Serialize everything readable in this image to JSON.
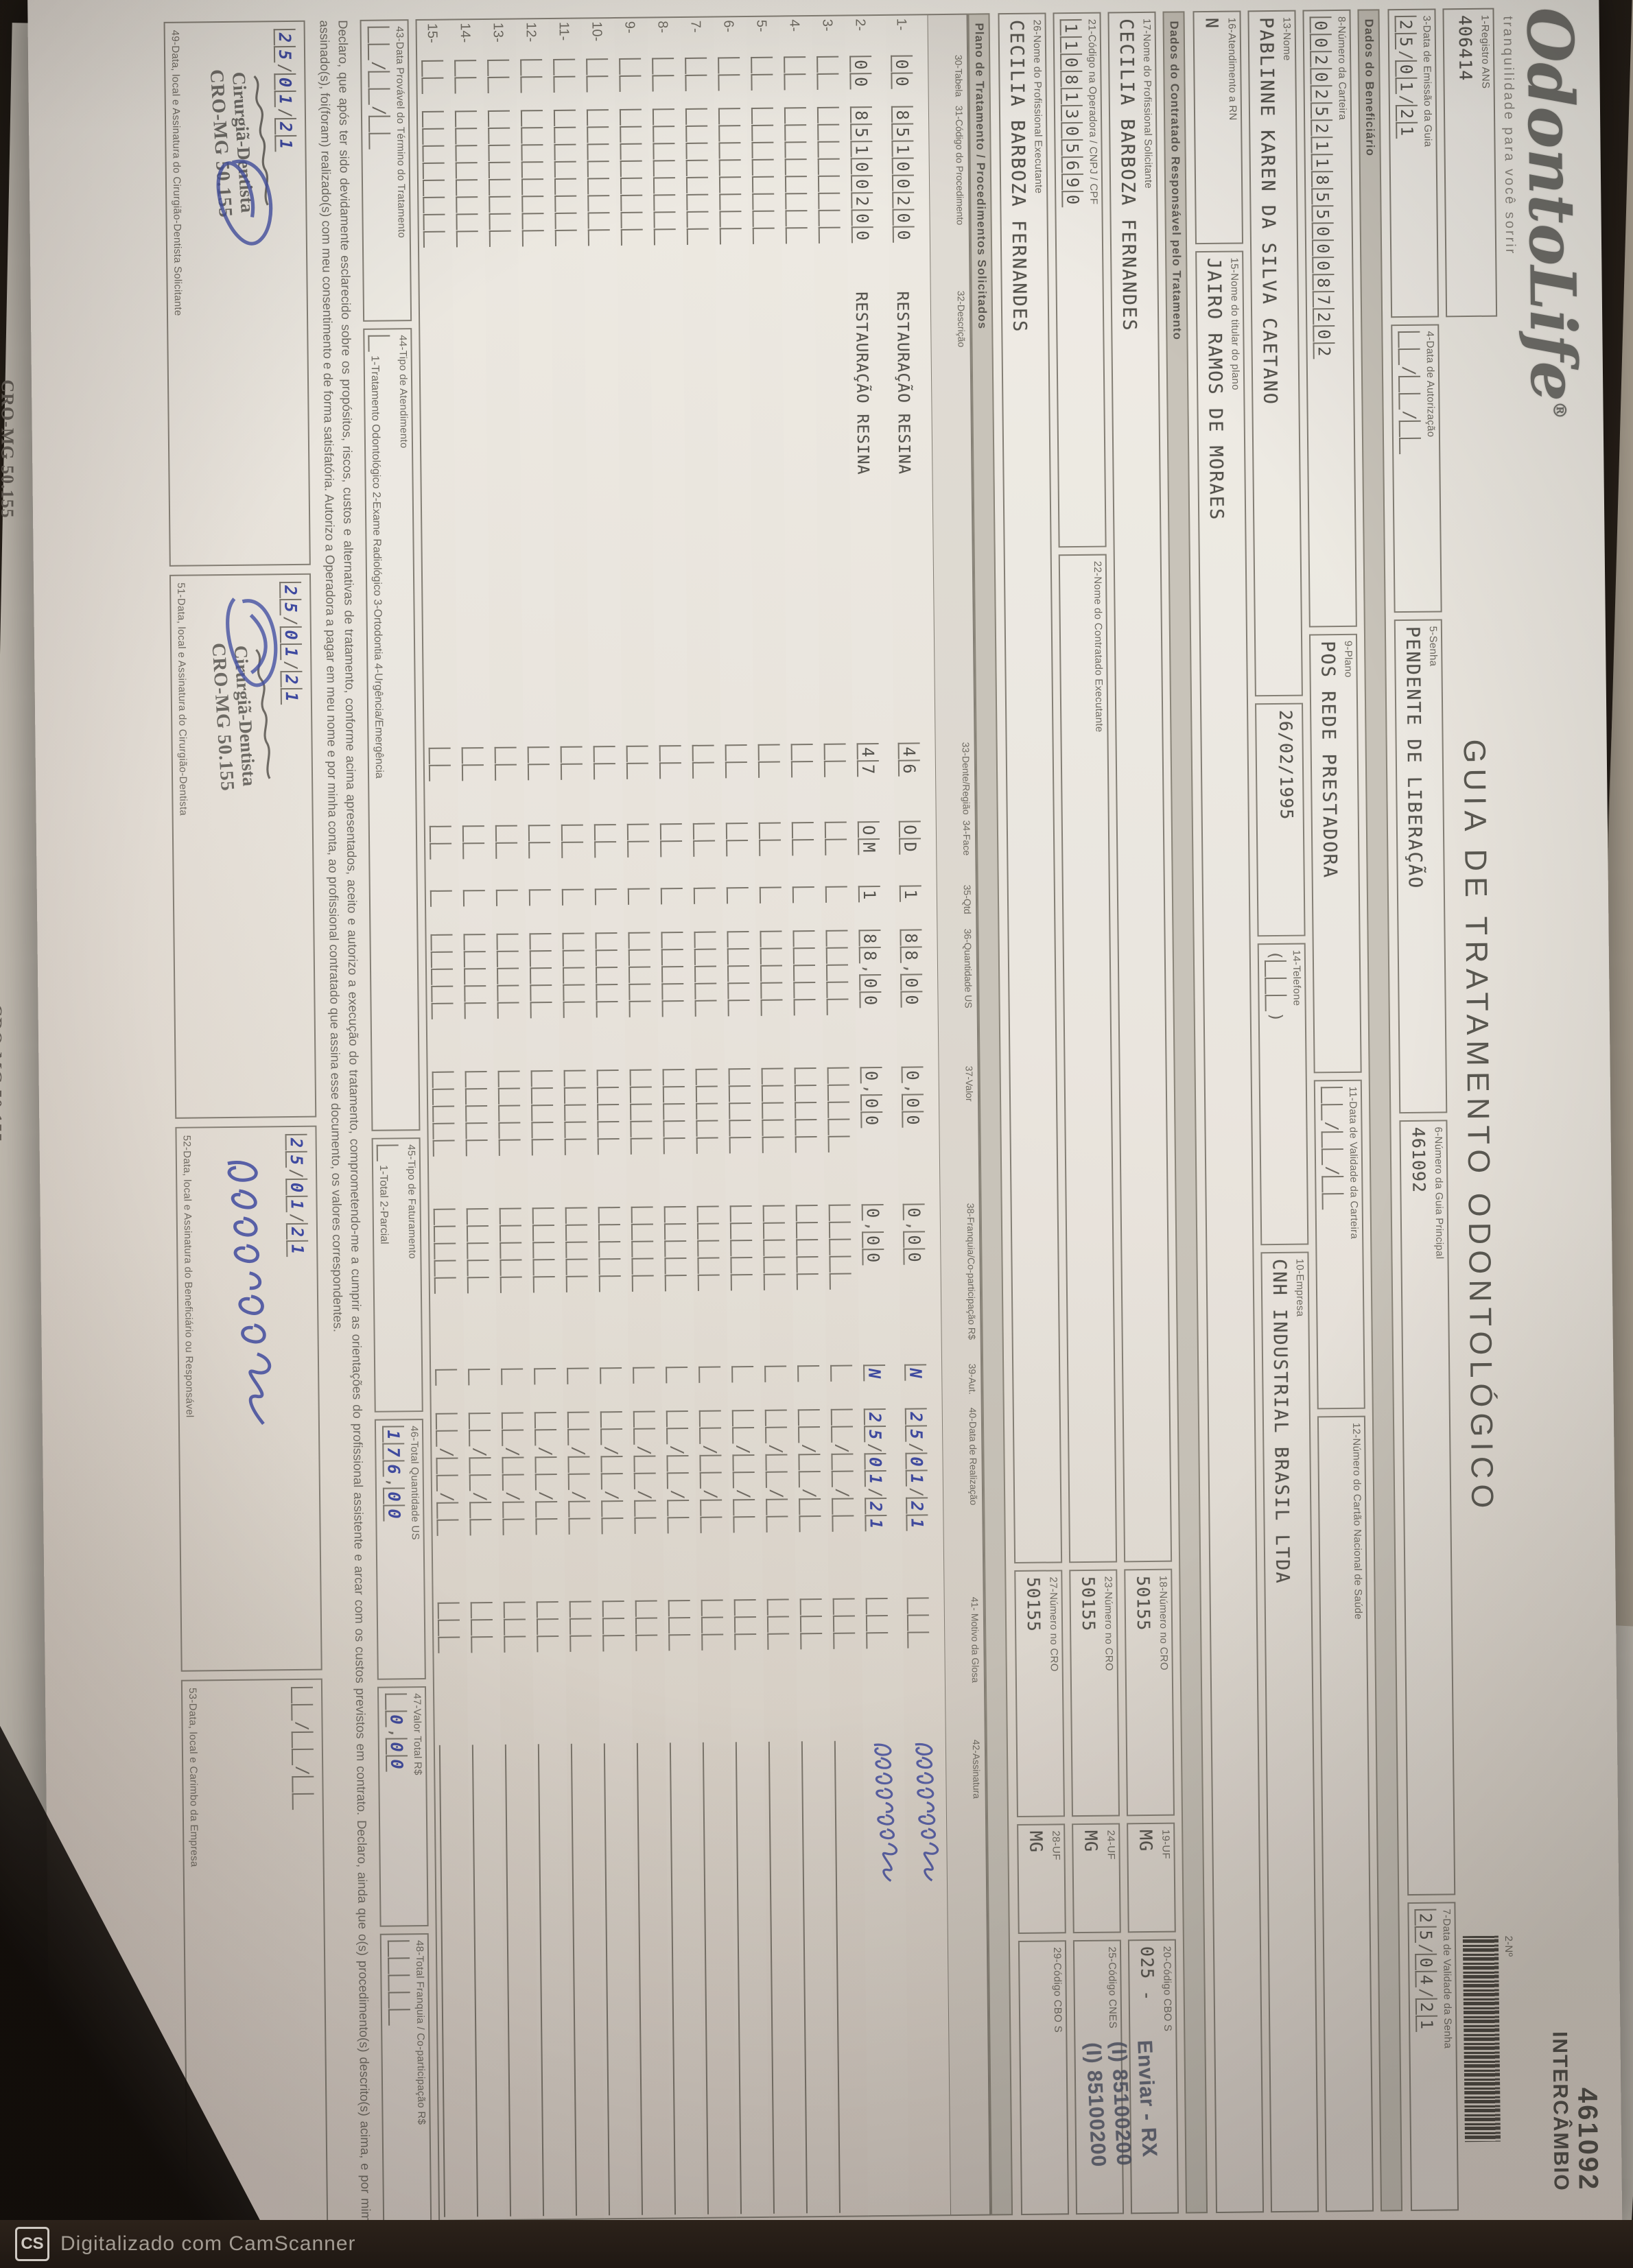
{
  "logo": {
    "name": "OdontoLife",
    "reg": "®",
    "tagline": "tranquilidade para você sorrir"
  },
  "header": {
    "registro_label": "1-Registro ANS",
    "registro_value": "406414",
    "no_label": "2-Nº",
    "guide_number": "461092",
    "guide_tag": "INTERCÂMBIO",
    "title": "GUIA DE TRATAMENTO ODONTOLÓGICO"
  },
  "fields": {
    "emissao_label": "3-Data de Emissão da Guia",
    "emissao_value": "25/01/21",
    "autorizacao_label": "4-Data de Autorização",
    "autorizacao_value": "  /  /  ",
    "senha_label": "5-Senha",
    "senha_value": "PENDENTE DE LIBERAÇÃO",
    "guia_principal_label": "6-Número da Guia Principal",
    "guia_principal_value": "461092",
    "validade_senha_label": "7-Data de Validade da Senha",
    "validade_senha_value": "25/04/21"
  },
  "beneficiario": {
    "section": "Dados do Beneficiário",
    "carteira_label": "8-Número da Carteira",
    "carteira_value": "00202521185500087202",
    "plano_label": "9-Plano",
    "plano_value": "POS REDE PRESTADORA",
    "validade_carteira_label": "11-Data de Validade da Carteira",
    "validade_carteira_value": "  /  /  ",
    "cns_label": "12-Número do Cartão Nacional de Saúde",
    "cns_value": "",
    "nome_label": "13-Nome",
    "nome_value": "PABLINNE KAREN DA SILVA CAETANO",
    "nascimento_value": "26/02/1995",
    "telefone_label": "14-Telefone",
    "telefone_value": "(   )",
    "empresa_label": "10-Empresa",
    "empresa_value": "CNH INDUSTRIAL BRASIL LTDA",
    "rn_label": "16-Atendimento a RN",
    "rn_value": "N",
    "titular_label": "15-Nome do titular do plano",
    "titular_value": "JAIRO RAMOS DE MORAES"
  },
  "contratado": {
    "section": "Dados do Contratado Responsável pelo Tratamento",
    "solicitante_label": "17-Nome do Profissional Solicitante",
    "solicitante_value": "CECILIA BARBOZA FERNANDES",
    "cro18_label": "18-Número no CRO",
    "cro18_value": "50155",
    "uf19_label": "19-UF",
    "uf19_value": "MG",
    "cbo20_label": "20-Código CBO S",
    "cbo20_value": "025 -",
    "codigo21_label": "21-Código na Operadora / CNPJ / CPF",
    "codigo21_value": "11081305690",
    "executante22_label": "22-Nome do Contratado Executante",
    "executante22_value": "",
    "cro23_label": "23-Número no CRO",
    "cro23_value": "50155",
    "uf24_label": "24-UF",
    "uf24_value": "MG",
    "cnes25_label": "25-Código CNES",
    "cnes25_value": "",
    "executante26_label": "26-Nome do Profissional Executante",
    "executante26_value": "CECILIA BARBOZA FERNANDES",
    "cro27_label": "27-Número no CRO",
    "cro27_value": "50155",
    "uf28_label": "28-UF",
    "uf28_value": "MG",
    "cbo29_label": "29-Código CBO S",
    "cbo29_value": "",
    "stamp_line1": "Enviar - RX",
    "stamp_line2": "(I) 85100200",
    "stamp_line3": "(I) 85100200"
  },
  "procedures": {
    "section": "Plano de Tratamento / Procedimentos Solicitados",
    "columns": {
      "n": "",
      "tabela": "30-Tabela",
      "codigo": "31-Código do Procedimento",
      "desc": "32-Descrição",
      "dente": "33-Dente/Região",
      "face": "34-Face",
      "qtd": "35-Qtd",
      "us": "36-Quantidade US",
      "valor": "37-Valor",
      "franquia": "38-Franquia/Co-participação R$",
      "aut": "39-Aut.",
      "data": "40-Data de Realização",
      "glosa": "41- Motivo da Glosa",
      "assin": "42-Assinatura"
    },
    "rows": [
      {
        "n": "1-",
        "tabela": "00",
        "codigo": "85100200",
        "desc": "RESTAURAÇÃO RESINA",
        "dente": "46",
        "face": "OD",
        "qtd": "1",
        "us": "88,00",
        "valor": "0,00",
        "franquia": "0,00",
        "aut": "N",
        "data": "25/01/21",
        "glosa": "",
        "sig": true
      },
      {
        "n": "2-",
        "tabela": "00",
        "codigo": "85100200",
        "desc": "RESTAURAÇÃO RESINA",
        "dente": "47",
        "face": "OM",
        "qtd": "1",
        "us": "88,00",
        "valor": "0,00",
        "franquia": "0,00",
        "aut": "N",
        "data": "25/01/21",
        "glosa": "",
        "sig": true
      },
      {
        "n": "3-"
      },
      {
        "n": "4-"
      },
      {
        "n": "5-"
      },
      {
        "n": "6-"
      },
      {
        "n": "7-"
      },
      {
        "n": "8-"
      },
      {
        "n": "9-"
      },
      {
        "n": "10-"
      },
      {
        "n": "11-"
      },
      {
        "n": "12-"
      },
      {
        "n": "13-"
      },
      {
        "n": "14-"
      },
      {
        "n": "15-"
      }
    ]
  },
  "totals": {
    "termino_label": "43-Data Provável do Término do Tratamento",
    "termino_value": "  /  /  ",
    "atendimento_label": "44-Tipo de Atendimento",
    "atendimento_options": "1-Tratamento Odontológico   2-Exame Radiológico   3-Ortodontia   4-Urgência/Emergência",
    "faturamento_label": "45-Tipo de Faturamento",
    "faturamento_options": "1-Total   2-Parcial",
    "qtd_us_label": "46-Total Quantidade US",
    "qtd_us_value": "176,00",
    "valor_total_label": "47-Valor Total R$",
    "valor_total_value": " 0,00",
    "franquia_label": "48-Total Franquia / Co-participação R$",
    "franquia_value": "     "
  },
  "declaration": {
    "text1": "Declaro, que após ter sido devidamente esclarecido sobre os propósitos, riscos, custos e alternativas de tratamento, conforme acima apresentados, aceito e autorizo a execução do tratamento, comprometendo-me a cumprir as orientações do profissional assistente e arcar com os custos previstos em contrato.",
    "text2": "Declaro, ainda que o(s) procedimento(s) descrito(s) acima, e por mim assinado(s), foi(foram) realizado(s) com meu consentimento e de forma satisfatória. Autorizo a Operadora a pagar em meu nome e por minha conta, ao profissional contratado que assina esse documento, os valores correspondentes."
  },
  "signatures": {
    "s49_label": "49-Data, local e Assinatura do Cirurgião-Dentista Solicitante",
    "s49_date": "25/01/21",
    "s51_label": "51-Data, local e Assinatura do Cirurgião-Dentista",
    "s51_date": "25/01/21",
    "s52_label": "52-Data, local e Assinatura do Beneficiário ou Responsável",
    "s52_date": "25/01/21",
    "s53_label": "53-Data, local e Carimbo da Empresa",
    "s53_date": "  /  /  ",
    "stamp_title": "Cirurgiã-Dentista",
    "stamp_cro": "CRO-MG 50.155"
  },
  "understack": {
    "stamp": "CRO-MG 50.155"
  },
  "scanner": {
    "cs": "CS",
    "text": "Digitalizado com CamScanner"
  }
}
